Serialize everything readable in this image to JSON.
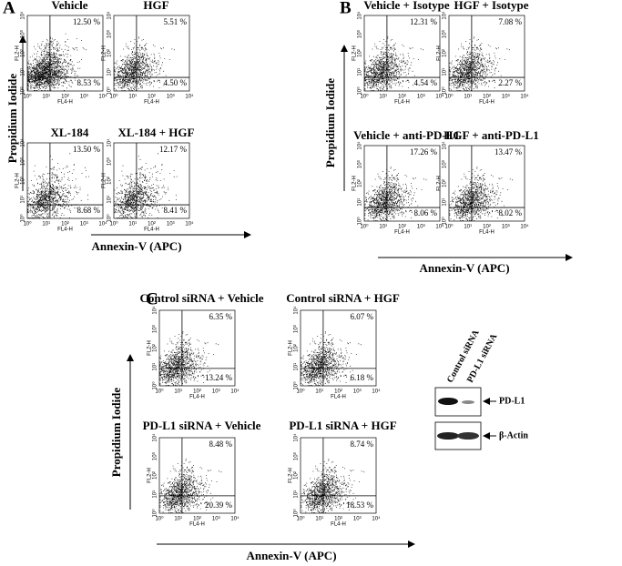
{
  "panels": [
    {
      "letter": "A",
      "axis_x_label": "Annexin-V (APC)",
      "axis_y_label": "Propidium Iodide",
      "plots": [
        {
          "title": "Vehicle",
          "upper_right": "12.50 %",
          "lower_right": "8.53 %"
        },
        {
          "title": "HGF",
          "upper_right": "5.51 %",
          "lower_right": "4.50 %"
        },
        {
          "title": "XL-184",
          "upper_right": "13.50 %",
          "lower_right": "8.68 %"
        },
        {
          "title": "XL-184 + HGF",
          "upper_right": "12.17 %",
          "lower_right": "8.41 %"
        }
      ]
    },
    {
      "letter": "B",
      "axis_x_label": "Annexin-V (APC)",
      "axis_y_label": "Propidium Iodide",
      "plots": [
        {
          "title": "Vehicle + Isotype",
          "upper_right": "12.31 %",
          "lower_right": "4.54 %"
        },
        {
          "title": "HGF + Isotype",
          "upper_right": "7.08 %",
          "lower_right": "2.27 %"
        },
        {
          "title": "Vehicle + anti-PD-L1",
          "upper_right": "17.26 %",
          "lower_right": "8.06 %"
        },
        {
          "title": "HGF + anti-PD-L1",
          "upper_right": "13.47 %",
          "lower_right": "8.02 %"
        }
      ]
    },
    {
      "letter": "C",
      "axis_x_label": "Annexin-V (APC)",
      "axis_y_label": "Propidium Iodide",
      "plots": [
        {
          "title": "Control siRNA + Vehicle",
          "upper_right": "6.35 %",
          "lower_right": "13.24 %"
        },
        {
          "title": "Control siRNA + HGF",
          "upper_right": "6.07 %",
          "lower_right": "6.18 %"
        },
        {
          "title": "PD-L1 siRNA + Vehicle",
          "upper_right": "8.48 %",
          "lower_right": "20.39 %"
        },
        {
          "title": "PD-L1 siRNA + HGF",
          "upper_right": "8.74 %",
          "lower_right": "18.53 %"
        }
      ]
    }
  ],
  "plot_axes": {
    "x_channel": "FL4-H",
    "y_channel": "FL2-H",
    "ticks": [
      "10⁰",
      "10¹",
      "10²",
      "10³",
      "10⁴"
    ]
  },
  "blot": {
    "lanes": [
      "Control siRNA",
      "PD-L1 siRNA"
    ],
    "bands": [
      "PD-L1",
      "β-Actin"
    ]
  }
}
